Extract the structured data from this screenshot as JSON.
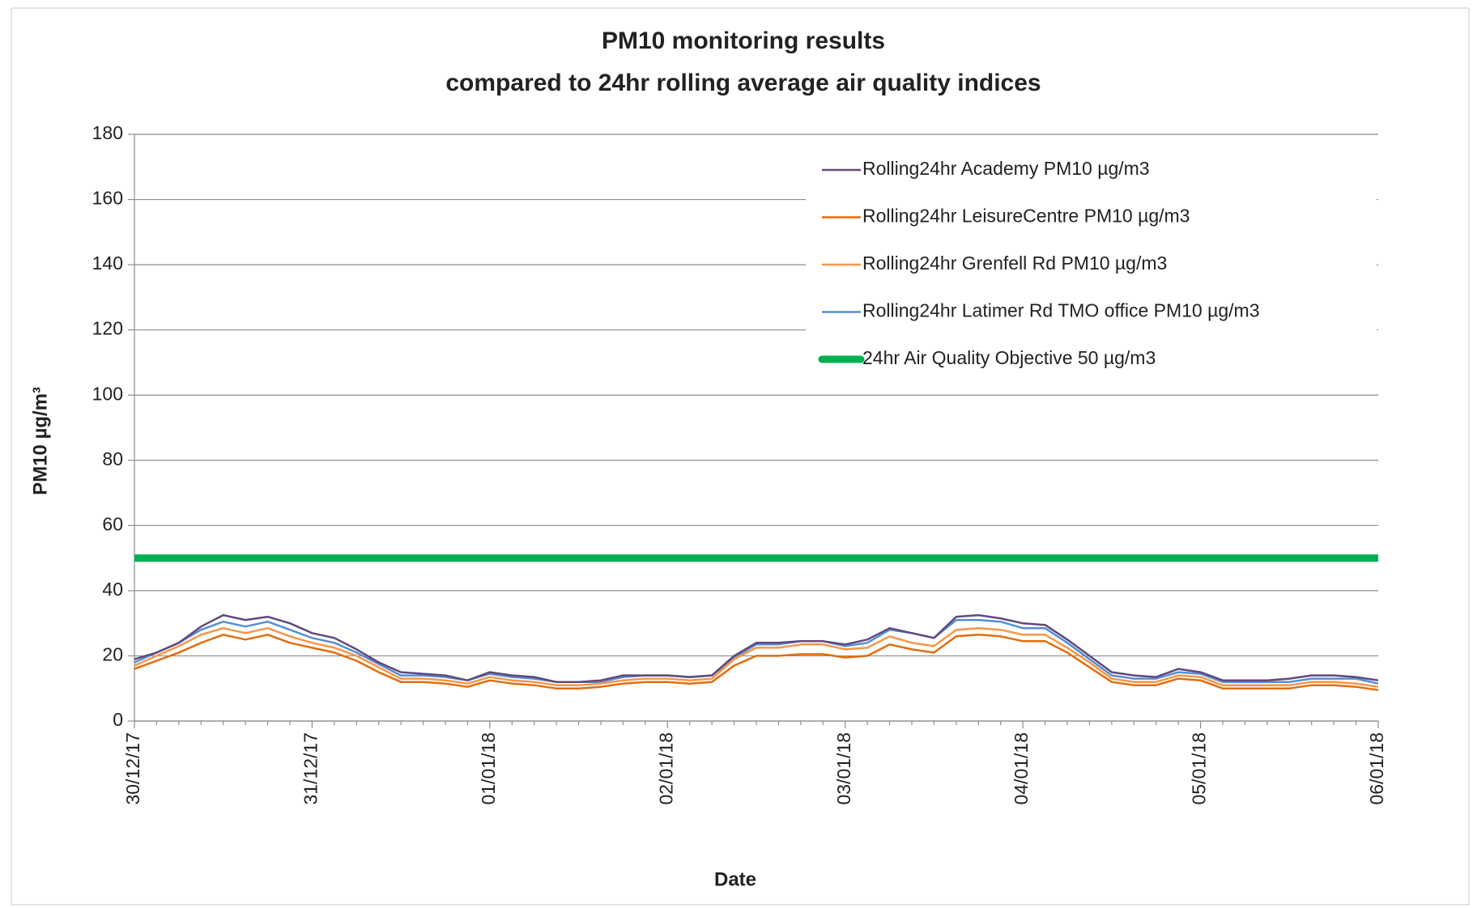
{
  "chart_data": {
    "type": "line",
    "title": "PM10 monitoring results",
    "subtitle": "compared to 24hr rolling average air quality indices",
    "x_label": "Date",
    "y_label": "PM10 µg/m³",
    "categories": [
      "30/12/17",
      null,
      null,
      null,
      null,
      null,
      null,
      null,
      "31/12/17",
      null,
      null,
      null,
      null,
      null,
      null,
      null,
      "01/01/18",
      null,
      null,
      null,
      null,
      null,
      null,
      null,
      "02/01/18",
      null,
      null,
      null,
      null,
      null,
      null,
      null,
      "03/01/18",
      null,
      null,
      null,
      null,
      null,
      null,
      null,
      "04/01/18",
      null,
      null,
      null,
      null,
      null,
      null,
      null,
      "05/01/18",
      null,
      null,
      null,
      null,
      null,
      null,
      null,
      "06/01/18"
    ],
    "ylim": [
      0,
      180
    ],
    "yticks": [
      0,
      20,
      40,
      60,
      80,
      100,
      120,
      140,
      160,
      180
    ],
    "grid": true,
    "legend": "top-right",
    "series": [
      {
        "name": "Rolling24hr Academy PM10 µg/m3",
        "color": "#604a7b",
        "width": 2.5,
        "values": [
          19,
          21,
          24,
          29,
          32.5,
          31,
          32,
          30,
          27,
          25.5,
          22,
          18,
          15,
          14.5,
          14,
          12.5,
          15,
          14,
          13.5,
          12,
          12,
          12.5,
          14,
          14,
          14,
          13.5,
          14,
          20,
          24,
          24,
          24.5,
          24.5,
          23.5,
          25,
          28.5,
          27,
          25.5,
          32,
          32.5,
          31.5,
          30,
          29.5,
          25,
          20,
          15,
          14,
          13.5,
          16,
          15,
          12.5,
          12.5,
          12.5,
          13,
          14,
          14,
          13.5,
          12.5
        ]
      },
      {
        "name": "Rolling24hr LeisureCentre PM10 µg/m3",
        "color": "#e46c0a",
        "width": 2.5,
        "values": [
          16,
          18.5,
          21,
          24,
          26.5,
          25,
          26.5,
          24,
          22.5,
          21,
          18.5,
          15,
          12,
          12,
          11.5,
          10.5,
          12.5,
          11.5,
          11,
          10,
          10,
          10.5,
          11.5,
          12,
          12,
          11.5,
          12,
          17,
          20,
          20,
          20.5,
          20.5,
          19.5,
          20,
          23.5,
          22,
          21,
          26,
          26.5,
          26,
          24.5,
          24.5,
          21,
          16.5,
          12,
          11,
          11,
          13,
          12.5,
          10,
          10,
          10,
          10,
          11,
          11,
          10.5,
          9.5
        ]
      },
      {
        "name": "Rolling24hr Grenfell Rd PM10 µg/m3",
        "color": "#f79646",
        "width": 2.5,
        "values": [
          17,
          20,
          23,
          26.5,
          28.5,
          27,
          28.5,
          26,
          24,
          22.5,
          20,
          16.5,
          13,
          13,
          12.5,
          11.5,
          13.5,
          12.5,
          12,
          11,
          11,
          11.5,
          12.5,
          13,
          13,
          12.5,
          13,
          19,
          22.5,
          22.5,
          23.5,
          23.5,
          22,
          22.5,
          26,
          24,
          23,
          28,
          28.5,
          28,
          26.5,
          26.5,
          22.5,
          18,
          13,
          12,
          12,
          14,
          13.5,
          11,
          11,
          11,
          11,
          12,
          12,
          11.5,
          10.5
        ]
      },
      {
        "name": "Rolling24hr Latimer Rd TMO office PM10 µg/m3",
        "color": "#558ed5",
        "width": 2.5,
        "values": [
          18,
          21,
          24,
          28,
          30.5,
          29,
          30.5,
          28,
          25.5,
          24,
          21,
          17.5,
          14,
          14,
          13.5,
          12.5,
          14.5,
          13.5,
          13,
          12,
          12,
          12,
          13.5,
          14,
          14,
          13.5,
          14,
          19.5,
          23.5,
          23.5,
          24.5,
          24.5,
          23,
          24,
          28,
          27,
          25.5,
          31,
          31,
          30.5,
          28.5,
          28.5,
          24,
          19,
          14,
          13,
          13,
          15,
          14.5,
          12,
          12,
          12,
          12,
          13,
          13,
          13,
          11.5
        ]
      },
      {
        "name": "24hr Air Quality Objective 50 µg/m3",
        "color": "#00b050",
        "width": 9,
        "values": [
          50,
          50,
          50,
          50,
          50,
          50,
          50,
          50,
          50,
          50,
          50,
          50,
          50,
          50,
          50,
          50,
          50,
          50,
          50,
          50,
          50,
          50,
          50,
          50,
          50,
          50,
          50,
          50,
          50,
          50,
          50,
          50,
          50,
          50,
          50,
          50,
          50,
          50,
          50,
          50,
          50,
          50,
          50,
          50,
          50,
          50,
          50,
          50,
          50,
          50,
          50,
          50,
          50,
          50,
          50,
          50,
          50
        ]
      }
    ]
  }
}
